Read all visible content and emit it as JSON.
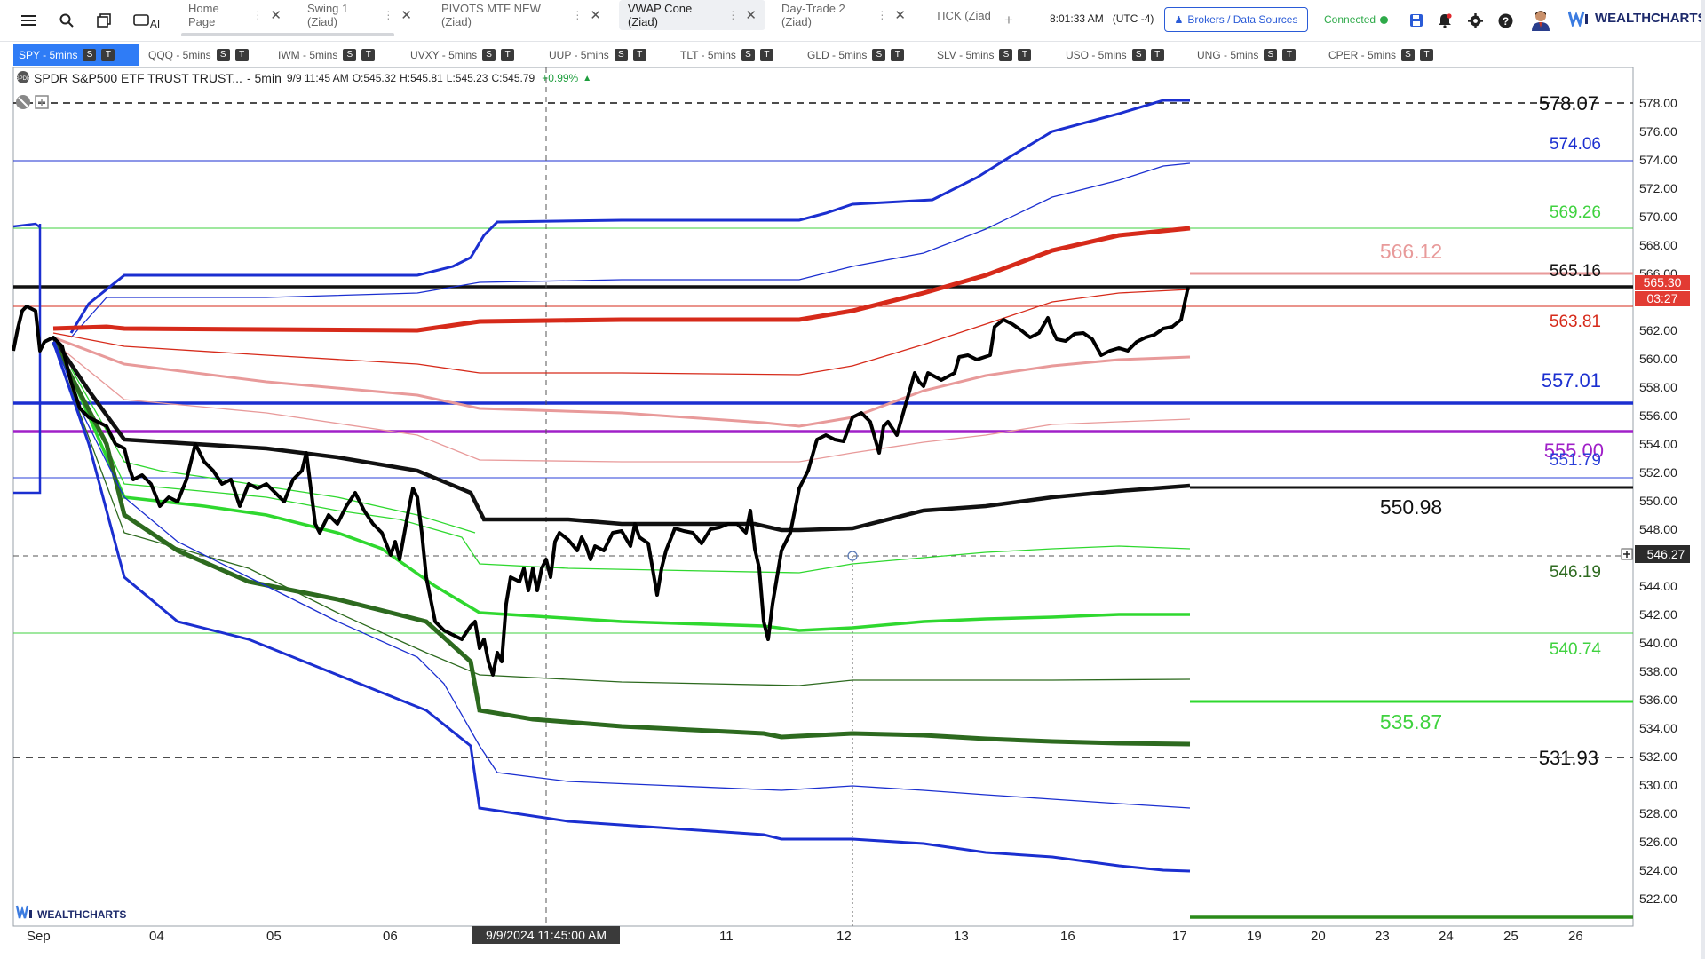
{
  "tabs": [
    {
      "label": "Home Page"
    },
    {
      "label": "Swing 1 (Ziad)"
    },
    {
      "label": "PIVOTS MTF NEW (Ziad)"
    },
    {
      "label": "VWAP Cone (Ziad)"
    },
    {
      "label": "Day-Trade 2 (Ziad)"
    },
    {
      "label": "TICK (Ziad"
    }
  ],
  "header": {
    "time": "8:01:33 AM",
    "timezone": "(UTC -4)",
    "brokers_label": "Brokers / Data Sources",
    "status": "Connected",
    "brand": "WEALTHCHARTS",
    "ai_label": "AI"
  },
  "symbols": [
    {
      "label": "SPY - 5mins"
    },
    {
      "label": "QQQ - 5mins"
    },
    {
      "label": "IWM - 5mins"
    },
    {
      "label": "UVXY - 5mins"
    },
    {
      "label": "UUP - 5mins"
    },
    {
      "label": "TLT - 5mins"
    },
    {
      "label": "GLD - 5mins"
    },
    {
      "label": "SLV - 5mins"
    },
    {
      "label": "USO - 5mins"
    },
    {
      "label": "UNG - 5mins"
    },
    {
      "label": "CPER - 5mins"
    }
  ],
  "symbol_badges": {
    "s": "S",
    "t": "T"
  },
  "instrument": {
    "name": "SPDR S&P500 ETF TRUST TRUST...",
    "interval": "- 5min",
    "date": "9/9 11:45 AM",
    "open_label": "O:",
    "open": "545.32",
    "high_label": "H:",
    "high": "545.81",
    "low_label": "L:",
    "low": "545.23",
    "close_label": "C:",
    "close": "545.79",
    "change": "+0.99%"
  },
  "chart_data": {
    "type": "line",
    "title": "",
    "ylim": [
      520,
      580
    ],
    "y_ticks": [
      "578.00",
      "576.00",
      "574.00",
      "572.00",
      "570.00",
      "568.00",
      "566.00",
      "564.00",
      "562.00",
      "560.00",
      "558.00",
      "556.00",
      "554.00",
      "552.00",
      "550.00",
      "548.00",
      "546.00",
      "544.00",
      "542.00",
      "540.00",
      "538.00",
      "536.00",
      "534.00",
      "532.00",
      "530.00",
      "528.00",
      "526.00",
      "524.00",
      "522.00"
    ],
    "x_ticks": [
      "Sep",
      "04",
      "05",
      "06",
      "9/9/2024 11:45:00 AM",
      "11",
      "12",
      "13",
      "16",
      "17",
      "19",
      "20",
      "23",
      "24",
      "25",
      "26"
    ],
    "level_labels": [
      {
        "text": "578.07",
        "color": "#111111"
      },
      {
        "text": "574.06",
        "color": "#1b2fd0"
      },
      {
        "text": "569.26",
        "color": "#3fd23f"
      },
      {
        "text": "566.12",
        "color": "#e89a9a"
      },
      {
        "text": "565.16",
        "color": "#111111"
      },
      {
        "text": "563.81",
        "color": "#d62a1a"
      },
      {
        "text": "557.01",
        "color": "#1b2fd0"
      },
      {
        "text": "555.00",
        "color": "#a020c8"
      },
      {
        "text": "551.79",
        "color": "#2a3fd8"
      },
      {
        "text": "550.98",
        "color": "#111111"
      },
      {
        "text": "546.19",
        "color": "#2d6a1f"
      },
      {
        "text": "540.74",
        "color": "#3fd23f"
      },
      {
        "text": "535.87",
        "color": "#3fd23f"
      },
      {
        "text": "531.93",
        "color": "#111111"
      }
    ],
    "price_badges": {
      "last": "565.30",
      "countdown": "03:27",
      "crosshair": "546.27"
    },
    "crosshair_date": "9/9/2024 11:45:00 AM",
    "series": [
      {
        "values": [
          [
            0,
            562.5
          ],
          [
            0.3,
            561
          ],
          [
            1,
            561.5
          ],
          [
            1.3,
            555
          ],
          [
            2,
            551
          ],
          [
            3,
            551.5
          ],
          [
            3.4,
            549
          ],
          [
            3.8,
            544.5
          ],
          [
            4.1,
            540
          ],
          [
            4.5,
            539
          ],
          [
            5,
            544
          ],
          [
            5.5,
            546
          ],
          [
            6,
            547
          ],
          [
            6.4,
            545
          ],
          [
            7,
            549
          ],
          [
            7.5,
            547
          ],
          [
            7.8,
            541
          ],
          [
            8,
            546
          ],
          [
            8.5,
            553
          ],
          [
            9,
            554
          ],
          [
            9.5,
            555.5
          ],
          [
            9.8,
            554
          ],
          [
            10,
            558
          ],
          [
            10.6,
            559
          ],
          [
            11,
            561
          ],
          [
            12,
            562
          ],
          [
            12.5,
            563
          ],
          [
            13,
            561.5
          ],
          [
            13.8,
            562
          ],
          [
            14.2,
            565.3
          ]
        ]
      }
    ],
    "colors": {
      "price": "#000000",
      "blue": "#1b2fd0",
      "red": "#d62a1a",
      "pink": "#e89a9a",
      "green": "#2fd82f",
      "darkgreen": "#2d6a1f",
      "purple": "#a020c8"
    }
  },
  "footer": {
    "watermark": "WEALTHCHARTS"
  }
}
